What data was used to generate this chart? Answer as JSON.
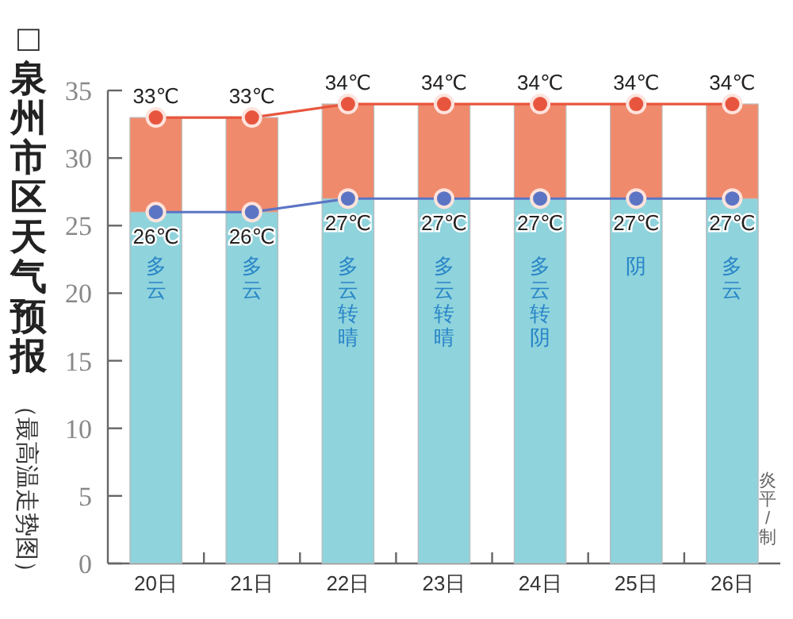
{
  "chart_data": {
    "type": "bar",
    "title": "□泉州市区天气预报",
    "subtitle": "（最高温走势图）",
    "stacked": true,
    "categories": [
      "20日",
      "21日",
      "22日",
      "23日",
      "24日",
      "25日",
      "26日"
    ],
    "ylim": [
      0,
      35
    ],
    "yticks": [
      0,
      5,
      10,
      15,
      20,
      25,
      30,
      35
    ],
    "series": [
      {
        "color": "#8fd3dc",
        "values": [
          26,
          26,
          27,
          27,
          27,
          27,
          27
        ]
      },
      {
        "color": "#f08a6c",
        "values": [
          7,
          7,
          7,
          7,
          7,
          7,
          7
        ]
      },
      {
        "type": "line",
        "color": "#e8553e",
        "marker": "circle",
        "values": [
          33,
          33,
          34,
          34,
          34,
          34,
          34
        ],
        "value_labels": [
          "33℃",
          "33℃",
          "34℃",
          "34℃",
          "34℃",
          "34℃",
          "34℃"
        ]
      },
      {
        "type": "line",
        "color": "#5b74c4",
        "marker": "circle",
        "values": [
          26,
          26,
          27,
          27,
          27,
          27,
          27
        ],
        "value_labels": [
          "26℃",
          "26℃",
          "27℃",
          "27℃",
          "27℃",
          "27℃",
          "27℃"
        ]
      }
    ],
    "annotations": [
      "多云",
      "多云",
      "多云转晴",
      "多云转晴",
      "多云转阴",
      "阴",
      "多云",
      "炎平/制"
    ]
  }
}
